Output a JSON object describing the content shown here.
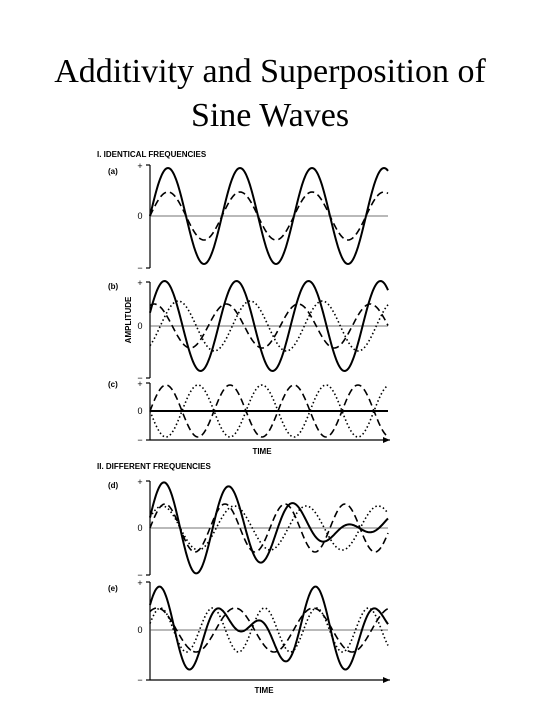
{
  "title_lines": [
    "Additivity and Superposition of",
    "Sine Waves"
  ],
  "y_axis_label": "AMPLITUDE",
  "sections": [
    {
      "heading": "I. IDENTICAL FREQUENCIES",
      "panels": [
        {
          "label": "(a)",
          "plus": "+",
          "zero": "0",
          "minus": "−"
        },
        {
          "label": "(b)",
          "plus": "+",
          "zero": "0",
          "minus": "−"
        },
        {
          "label": "(c)",
          "plus": "+",
          "zero": "0",
          "minus": "−"
        }
      ],
      "x_axis_label": "TIME"
    },
    {
      "heading": "II. DIFFERENT FREQUENCIES",
      "panels": [
        {
          "label": "(d)",
          "plus": "+",
          "zero": "0",
          "minus": "−"
        },
        {
          "label": "(e)",
          "plus": "+",
          "zero": "0",
          "minus": "−"
        }
      ],
      "x_axis_label": "TIME"
    }
  ]
}
